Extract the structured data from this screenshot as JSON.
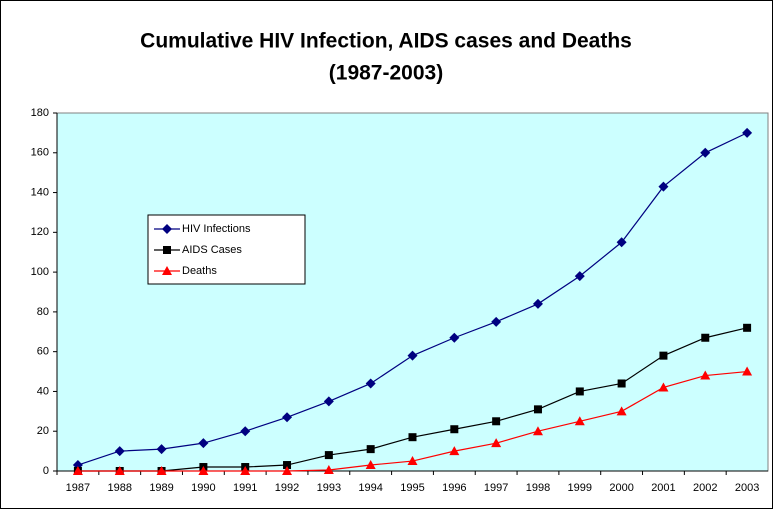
{
  "chart_data": {
    "type": "line",
    "title": [
      "Cumulative HIV Infection, AIDS cases and Deaths",
      "(1987-2003)"
    ],
    "categories": [
      "1987",
      "1988",
      "1989",
      "1990",
      "1991",
      "1992",
      "1993",
      "1994",
      "1995",
      "1996",
      "1997",
      "1998",
      "1999",
      "2000",
      "2001",
      "2002",
      "2003"
    ],
    "series": [
      {
        "name": "HIV Infections",
        "color": "#000080",
        "marker": "diamond",
        "values": [
          3,
          10,
          11,
          14,
          20,
          27,
          35,
          44,
          58,
          67,
          75,
          84,
          98,
          115,
          143,
          160,
          170
        ]
      },
      {
        "name": "AIDS Cases",
        "color": "#000000",
        "marker": "square",
        "values": [
          0,
          0,
          0,
          2,
          2,
          3,
          8,
          11,
          17,
          21,
          25,
          31,
          40,
          44,
          58,
          67,
          72
        ]
      },
      {
        "name": "Deaths",
        "color": "#ff0000",
        "marker": "triangle",
        "values": [
          0,
          0,
          0,
          0,
          0,
          0,
          0.5,
          3,
          5,
          10,
          14,
          20,
          25,
          30,
          42,
          48,
          50
        ]
      }
    ],
    "ylim": [
      0,
      180
    ],
    "yticks": [
      0,
      20,
      40,
      60,
      80,
      100,
      120,
      140,
      160,
      180
    ],
    "plot_background": "#ccffff",
    "grid": false,
    "legend": "left"
  }
}
